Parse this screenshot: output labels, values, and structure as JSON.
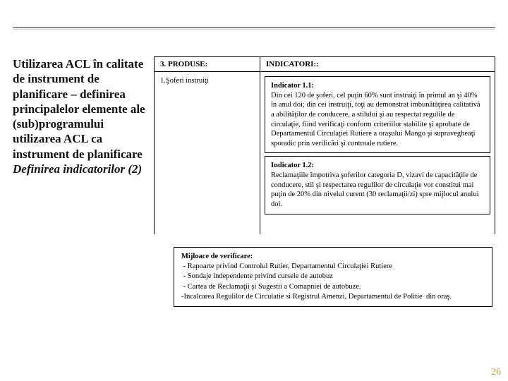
{
  "leftTitle": {
    "line1": "Utilizarea ACL în calitate de instrument de planificare – definirea principalelor elemente ale (sub)programului utilizarea ACL ca instrument de planificare",
    "italic": "Definirea indicatorilor (2)"
  },
  "table": {
    "produseHeader": "3. PRODUSE:",
    "produseBody": "1.Şoferi instruiţi",
    "indicHeader": "INDICATORI::",
    "indicator1": {
      "title": "Indicator 1.1:",
      "text": "Din cei 120 de şoferi, cel puţin 60% sunt instruiţi în primul an şi 40% în anul doi; din cei instruiţi, toţi au demonstrat îmbunătăţirea calitativă a abilităţilor de conducere, a stilului şi  au respectat regulile de circulaţie, fiind verificaţi conform criteriilor stabilite şi aprobate de Departamentul Circulaţiei Rutiere a oraşului Mango şi supravegheaţi sporadic prin verificări şi controale rutiere."
    },
    "indicator2": {
      "title": "Indicator 1.2:",
      "text": "Reclamaţiile împotriva şoferilor categoria D, vizavi de capacităţile de conducere, stil şi respectarea regulilor de circulaţie vor constitui mai puţin de 20% din nivelul curent (30 reclamaţii/zi) spre mijlocul anului doi."
    }
  },
  "mijloace": {
    "title": "Mijloace de verificare:",
    "body": " - Rapoarte privind Controlul Rutier, Departamentul Circulaţiei Rutiere\n - Sondaje independente privind cursele de autobuz\n - Cartea de Reclamaţii şi Sugestii a Comapniei de autobuze.                                                                               -Incalcarea Regulilor de Circulatie si Registrul Amenzi, Departamentul de Politie  din oraş."
  },
  "pageNumber": "26"
}
